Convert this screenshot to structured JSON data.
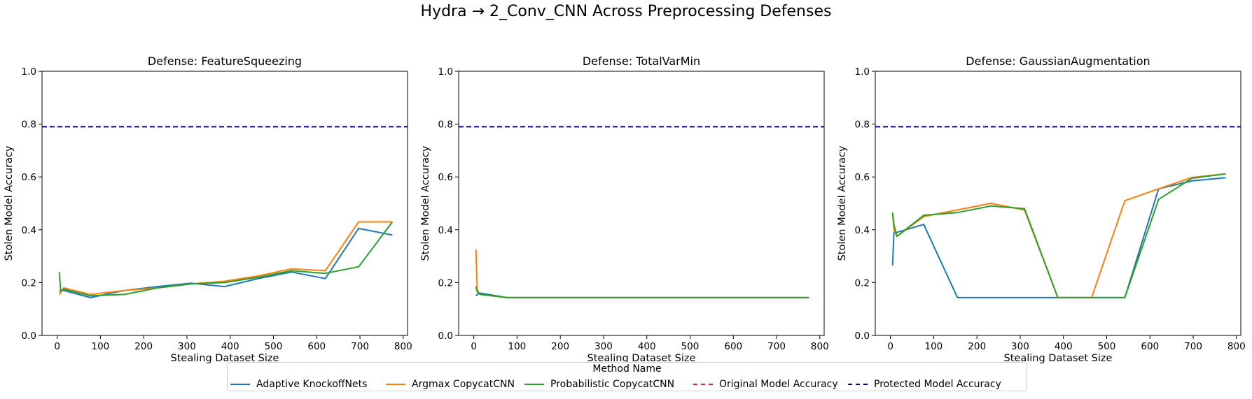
{
  "title": "Hydra → 2_Conv_CNN Across Preprocessing Defenses",
  "legend": {
    "title": "Method Name",
    "items": [
      {
        "label": "Adaptive KnockoffNets",
        "color": "#1f77b4",
        "style": "solid"
      },
      {
        "label": "Argmax CopycatCNN",
        "color": "#ff7f0e",
        "style": "solid"
      },
      {
        "label": "Probabilistic CopycatCNN",
        "color": "#2ca02c",
        "style": "solid"
      },
      {
        "label": "Original Model Accuracy",
        "color": "#d62728",
        "style": "dashed"
      },
      {
        "label": "Protected Model Accuracy",
        "color": "#00008b",
        "style": "dashed"
      }
    ]
  },
  "chart_data": [
    {
      "type": "line",
      "title": "Defense: FeatureSqueezing",
      "xlabel": "Stealing Dataset Size",
      "ylabel": "Stolen Model Accuracy",
      "xlim": [
        -35,
        810
      ],
      "ylim": [
        0,
        1
      ],
      "xticks": [
        0,
        100,
        200,
        300,
        400,
        500,
        600,
        700,
        800
      ],
      "yticks": [
        0.0,
        0.2,
        0.4,
        0.6,
        0.8,
        1.0
      ],
      "hline": {
        "name": "Protected Model Accuracy",
        "y": 0.79
      },
      "series": [
        {
          "name": "Adaptive KnockoffNets",
          "x": [
            5,
            8,
            15,
            77,
            155,
            232,
            310,
            387,
            465,
            542,
            620,
            697,
            775
          ],
          "y": [
            0.165,
            0.168,
            0.17,
            0.143,
            0.17,
            0.185,
            0.198,
            0.185,
            0.215,
            0.24,
            0.215,
            0.405,
            0.38
          ]
        },
        {
          "name": "Argmax CopycatCNN",
          "x": [
            5,
            8,
            15,
            77,
            155,
            232,
            310,
            387,
            465,
            542,
            620,
            697,
            775
          ],
          "y": [
            0.155,
            0.162,
            0.18,
            0.155,
            0.17,
            0.18,
            0.195,
            0.205,
            0.225,
            0.252,
            0.245,
            0.43,
            0.43
          ]
        },
        {
          "name": "Probabilistic CopycatCNN",
          "x": [
            5,
            8,
            15,
            77,
            155,
            232,
            310,
            387,
            465,
            542,
            620,
            697,
            775
          ],
          "y": [
            0.24,
            0.17,
            0.175,
            0.15,
            0.155,
            0.18,
            0.195,
            0.2,
            0.22,
            0.245,
            0.235,
            0.26,
            0.43
          ]
        }
      ]
    },
    {
      "type": "line",
      "title": "Defense: TotalVarMin",
      "xlabel": "Stealing Dataset Size",
      "ylabel": "Stolen Model Accuracy",
      "xlim": [
        -35,
        810
      ],
      "ylim": [
        0,
        1
      ],
      "xticks": [
        0,
        100,
        200,
        300,
        400,
        500,
        600,
        700,
        800
      ],
      "yticks": [
        0.0,
        0.2,
        0.4,
        0.6,
        0.8,
        1.0
      ],
      "hline": {
        "name": "Protected Model Accuracy",
        "y": 0.79
      },
      "series": [
        {
          "name": "Adaptive KnockoffNets",
          "x": [
            5,
            8,
            15,
            77,
            155,
            232,
            310,
            387,
            465,
            542,
            620,
            697,
            775
          ],
          "y": [
            0.15,
            0.155,
            0.16,
            0.143,
            0.143,
            0.143,
            0.143,
            0.143,
            0.143,
            0.143,
            0.143,
            0.143,
            0.143
          ]
        },
        {
          "name": "Argmax CopycatCNN",
          "x": [
            5,
            8,
            15,
            77,
            155,
            232,
            310,
            387,
            465,
            542,
            620,
            697,
            775
          ],
          "y": [
            0.325,
            0.17,
            0.155,
            0.143,
            0.143,
            0.143,
            0.143,
            0.143,
            0.143,
            0.143,
            0.143,
            0.143,
            0.143
          ]
        },
        {
          "name": "Probabilistic CopycatCNN",
          "x": [
            5,
            8,
            15,
            77,
            155,
            232,
            310,
            387,
            465,
            542,
            620,
            697,
            775
          ],
          "y": [
            0.185,
            0.165,
            0.155,
            0.143,
            0.143,
            0.143,
            0.143,
            0.143,
            0.143,
            0.143,
            0.143,
            0.143,
            0.143
          ]
        }
      ]
    },
    {
      "type": "line",
      "title": "Defense: GaussianAugmentation",
      "xlabel": "Stealing Dataset Size",
      "ylabel": "Stolen Model Accuracy",
      "xlim": [
        -35,
        810
      ],
      "ylim": [
        0,
        1
      ],
      "xticks": [
        0,
        100,
        200,
        300,
        400,
        500,
        600,
        700,
        800
      ],
      "yticks": [
        0.0,
        0.2,
        0.4,
        0.6,
        0.8,
        1.0
      ],
      "hline": {
        "name": "Protected Model Accuracy",
        "y": 0.79
      },
      "series": [
        {
          "name": "Adaptive KnockoffNets",
          "x": [
            5,
            8,
            15,
            77,
            155,
            232,
            310,
            387,
            465,
            542,
            620,
            697,
            775
          ],
          "y": [
            0.265,
            0.39,
            0.39,
            0.42,
            0.143,
            0.143,
            0.143,
            0.143,
            0.143,
            0.143,
            0.555,
            0.585,
            0.597
          ]
        },
        {
          "name": "Argmax CopycatCNN",
          "x": [
            5,
            8,
            15,
            77,
            155,
            232,
            310,
            387,
            465,
            542,
            620,
            697,
            775
          ],
          "y": [
            0.465,
            0.4,
            0.375,
            0.45,
            0.475,
            0.5,
            0.475,
            0.143,
            0.143,
            0.51,
            0.555,
            0.598,
            0.612
          ]
        },
        {
          "name": "Probabilistic CopycatCNN",
          "x": [
            5,
            8,
            15,
            77,
            155,
            232,
            310,
            387,
            465,
            542,
            620,
            697,
            775
          ],
          "y": [
            0.465,
            0.42,
            0.375,
            0.455,
            0.465,
            0.49,
            0.48,
            0.143,
            0.143,
            0.143,
            0.515,
            0.595,
            0.612
          ]
        }
      ]
    }
  ]
}
